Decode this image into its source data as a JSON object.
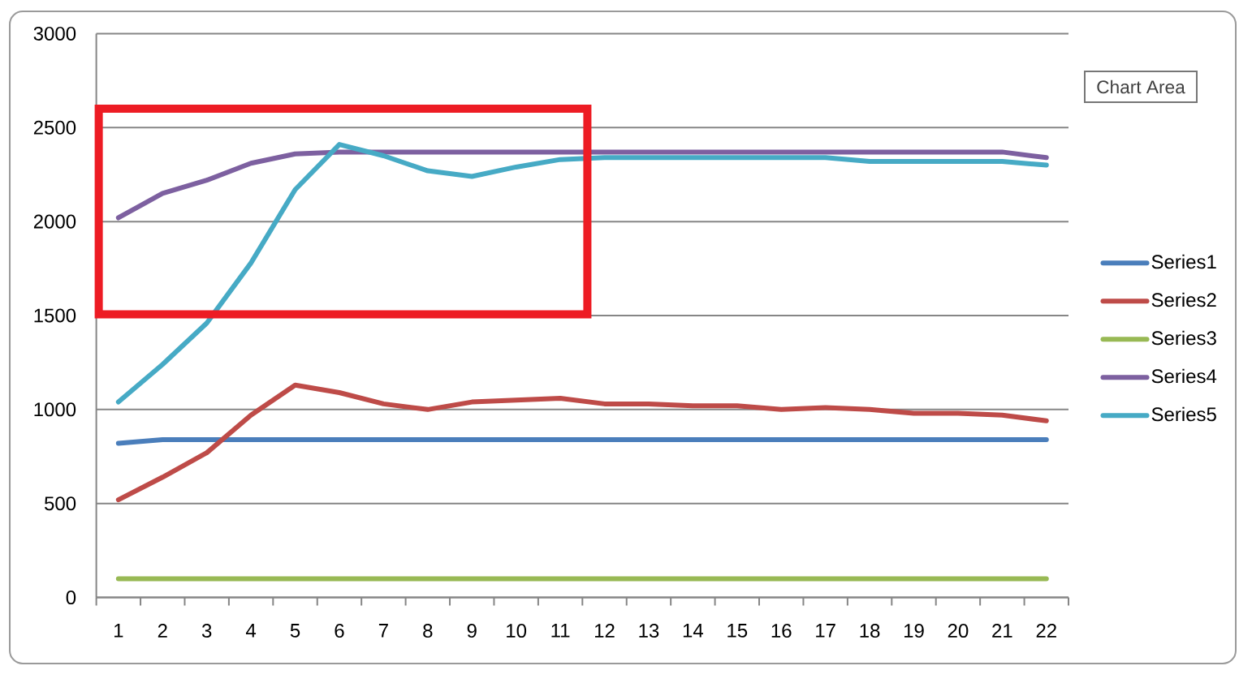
{
  "chart_data": {
    "type": "line",
    "categories": [
      "1",
      "2",
      "3",
      "4",
      "5",
      "6",
      "7",
      "8",
      "9",
      "10",
      "11",
      "12",
      "13",
      "14",
      "15",
      "16",
      "17",
      "18",
      "19",
      "20",
      "21",
      "22"
    ],
    "series": [
      {
        "name": "Series1",
        "color": "#4a7ebb",
        "values": [
          820,
          840,
          840,
          840,
          840,
          840,
          840,
          840,
          840,
          840,
          840,
          840,
          840,
          840,
          840,
          840,
          840,
          840,
          840,
          840,
          840,
          840
        ]
      },
      {
        "name": "Series2",
        "color": "#be4b48",
        "values": [
          520,
          640,
          770,
          970,
          1130,
          1090,
          1030,
          1000,
          1040,
          1050,
          1060,
          1030,
          1030,
          1020,
          1020,
          1000,
          1010,
          1000,
          980,
          980,
          970,
          940
        ]
      },
      {
        "name": "Series3",
        "color": "#98b954",
        "values": [
          100,
          100,
          100,
          100,
          100,
          100,
          100,
          100,
          100,
          100,
          100,
          100,
          100,
          100,
          100,
          100,
          100,
          100,
          100,
          100,
          100,
          100
        ]
      },
      {
        "name": "Series4",
        "color": "#7d60a0",
        "values": [
          2020,
          2150,
          2220,
          2310,
          2360,
          2370,
          2370,
          2370,
          2370,
          2370,
          2370,
          2370,
          2370,
          2370,
          2370,
          2370,
          2370,
          2370,
          2370,
          2370,
          2370,
          2340
        ]
      },
      {
        "name": "Series5",
        "color": "#46aac5",
        "values": [
          1040,
          1240,
          1460,
          1780,
          2170,
          2410,
          2350,
          2270,
          2240,
          2290,
          2330,
          2340,
          2340,
          2340,
          2340,
          2340,
          2340,
          2320,
          2320,
          2320,
          2320,
          2300
        ]
      }
    ],
    "ylim": [
      0,
      3000
    ],
    "yticks": [
      0,
      500,
      1000,
      1500,
      2000,
      2500,
      3000
    ],
    "grid": "y",
    "legend": "right",
    "marker": "none",
    "line_style": "solid",
    "annotations": [
      "Chart Area"
    ]
  }
}
